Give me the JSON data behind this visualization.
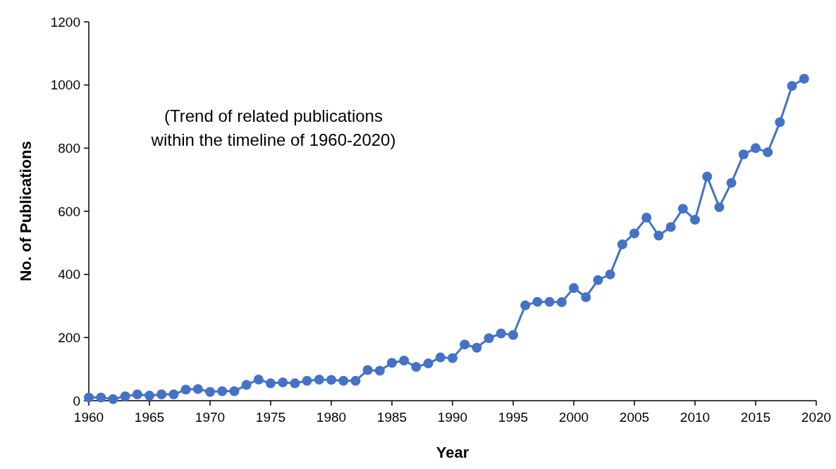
{
  "chart_data": {
    "type": "line",
    "xlabel": "Year",
    "ylabel": "No. of Publications",
    "annotations": [
      "(Trend of related publications within the timeline of 1960-2020)"
    ],
    "x": [
      1960,
      1961,
      1962,
      1963,
      1964,
      1965,
      1966,
      1967,
      1968,
      1969,
      1970,
      1971,
      1972,
      1973,
      1974,
      1975,
      1976,
      1977,
      1978,
      1979,
      1980,
      1981,
      1982,
      1983,
      1984,
      1985,
      1986,
      1987,
      1988,
      1989,
      1990,
      1991,
      1992,
      1993,
      1994,
      1995,
      1996,
      1997,
      1998,
      1999,
      2000,
      2001,
      2002,
      2003,
      2004,
      2005,
      2006,
      2007,
      2008,
      2009,
      2010,
      2011,
      2012,
      2013,
      2014,
      2015,
      2016,
      2017,
      2018,
      2019
    ],
    "series": [
      {
        "color": "#4472c4",
        "values": [
          10,
          10,
          5,
          14,
          20,
          16,
          20,
          20,
          35,
          37,
          28,
          30,
          30,
          50,
          67,
          55,
          58,
          55,
          63,
          67,
          66,
          63,
          63,
          97,
          95,
          120,
          127,
          107,
          118,
          137,
          135,
          178,
          168,
          198,
          213,
          208,
          302,
          313,
          313,
          312,
          357,
          328,
          382,
          400,
          495,
          530,
          580,
          523,
          550,
          608,
          573,
          710,
          613,
          690,
          780,
          800,
          787,
          882,
          997,
          1020
        ]
      }
    ],
    "xlim": [
      1960,
      2020
    ],
    "xticks": [
      1960,
      1965,
      1970,
      1975,
      1980,
      1985,
      1990,
      1995,
      2000,
      2005,
      2010,
      2015,
      2020
    ],
    "ylim": [
      0,
      1200
    ],
    "yticks": [
      0,
      200,
      400,
      600,
      800,
      1000,
      1200
    ],
    "marker": "circle",
    "line_style": "solid",
    "grid": false
  }
}
